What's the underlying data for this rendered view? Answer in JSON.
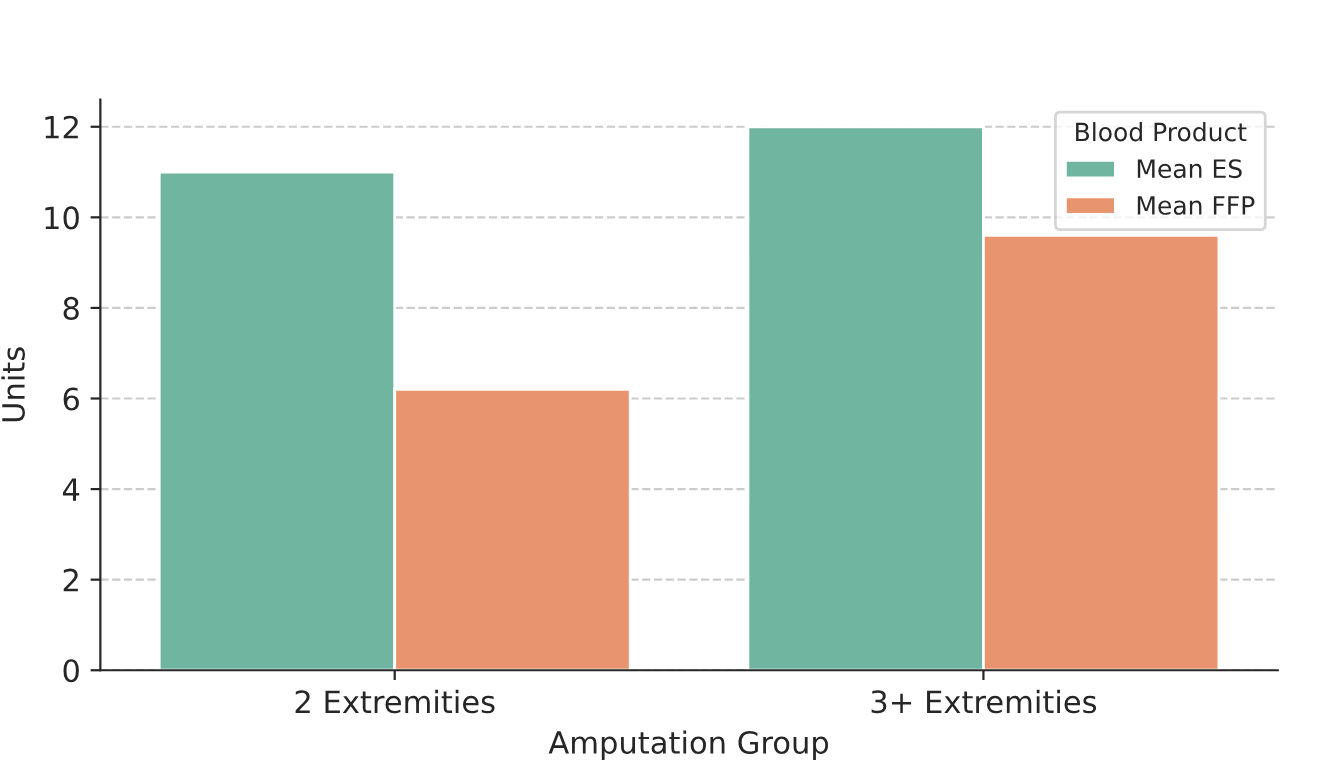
{
  "chart_data": {
    "type": "bar",
    "xlabel": "Amputation Group",
    "ylabel": "Units",
    "legend_title": "Blood Product",
    "categories": [
      "2 Extremities",
      "3+ Extremities"
    ],
    "series": [
      {
        "name": "Mean ES",
        "color": "#70b59f",
        "values": [
          11,
          12
        ]
      },
      {
        "name": "Mean FFP",
        "color": "#e8956f",
        "values": [
          6.2,
          9.6
        ]
      }
    ],
    "ylim": [
      0,
      12.6
    ],
    "yticks": [
      0,
      2,
      4,
      6,
      8,
      10,
      12
    ],
    "grid": "y",
    "legend": "top right"
  }
}
